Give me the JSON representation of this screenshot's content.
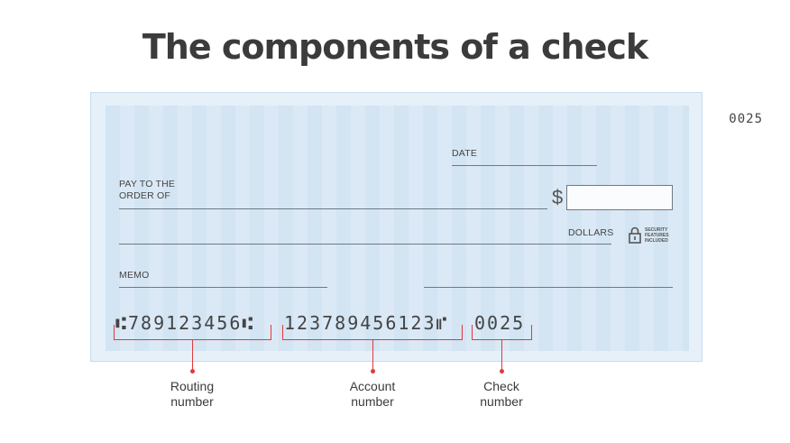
{
  "title": "The components of a check",
  "check": {
    "check_number_top": "0025",
    "date_label": "DATE",
    "pay_to_line1": "PAY TO THE",
    "pay_to_line2": "ORDER OF",
    "currency_symbol": "$",
    "dollars_label": "DOLLARS",
    "security_line1": "SECURITY",
    "security_line2": "FEATURES",
    "security_line3": "INCLUDED",
    "memo_label": "MEMO",
    "micr": {
      "routing": "⑆789123456⑆",
      "account": "123789456123⑈",
      "check": "0025"
    }
  },
  "callouts": {
    "routing": {
      "line1": "Routing",
      "line2": "number"
    },
    "account": {
      "line1": "Account",
      "line2": "number"
    },
    "check": {
      "line1": "Check",
      "line2": "number"
    }
  },
  "colors": {
    "accent": "#e03a3a",
    "check_bg": "#d3e4f3",
    "check_border": "#c6ddf0",
    "title": "#3b3b3b"
  },
  "icons": [
    "lock-icon"
  ]
}
